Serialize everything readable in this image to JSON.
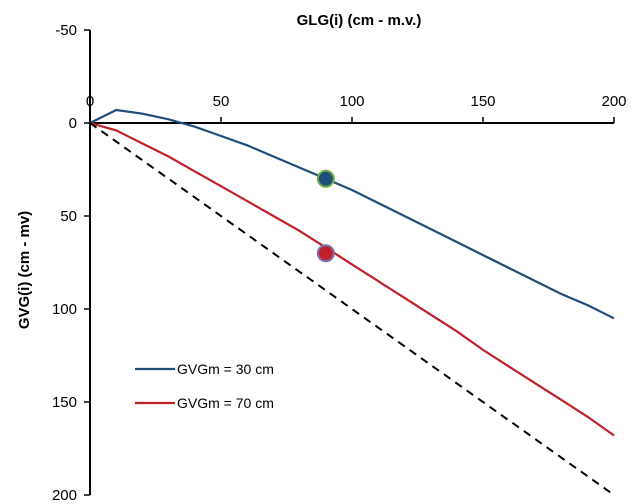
{
  "chart_data": {
    "type": "line",
    "xlabel": "GLG(i) (cm - m.v.)",
    "ylabel": "GVG(i) (cm - mv)",
    "xlim": [
      0,
      200
    ],
    "ylim": [
      -50,
      200
    ],
    "y_inverted": true,
    "x_axis_position": "top",
    "x_ticks": [
      0,
      50,
      100,
      150,
      200
    ],
    "y_ticks": [
      -50,
      0,
      50,
      100,
      150,
      200
    ],
    "grid": false,
    "legend_placement": "lower-left",
    "series": [
      {
        "name": "GVGm = 30 cm",
        "color": "#1f4e79",
        "style": "solid",
        "x": [
          0,
          10,
          20,
          30,
          40,
          50,
          60,
          70,
          80,
          90,
          100,
          110,
          120,
          130,
          140,
          150,
          160,
          170,
          180,
          190,
          200
        ],
        "y": [
          0,
          -7,
          -5,
          -2,
          2,
          7,
          12,
          18,
          24,
          30,
          36,
          43,
          50,
          57,
          64,
          71,
          78,
          85,
          92,
          98,
          105
        ],
        "marker": {
          "x": 90,
          "y": 30,
          "fill": "#1f4e79",
          "stroke": "#70ad47"
        }
      },
      {
        "name": "GVGm = 70 cm",
        "color": "#c0202a",
        "style": "solid",
        "x": [
          0,
          10,
          20,
          30,
          40,
          50,
          60,
          70,
          80,
          90,
          100,
          110,
          120,
          130,
          140,
          150,
          160,
          170,
          180,
          190,
          200
        ],
        "y": [
          0,
          4,
          11,
          18,
          26,
          34,
          42,
          50,
          58,
          67,
          76,
          85,
          94,
          103,
          112,
          122,
          131,
          140,
          149,
          158,
          168
        ],
        "marker": {
          "x": 90,
          "y": 70,
          "fill": "#c0202a",
          "stroke": "#7f6fb0"
        }
      },
      {
        "color": "#000000",
        "style": "dashed",
        "x": [
          0,
          200
        ],
        "y": [
          0,
          200
        ]
      }
    ]
  }
}
